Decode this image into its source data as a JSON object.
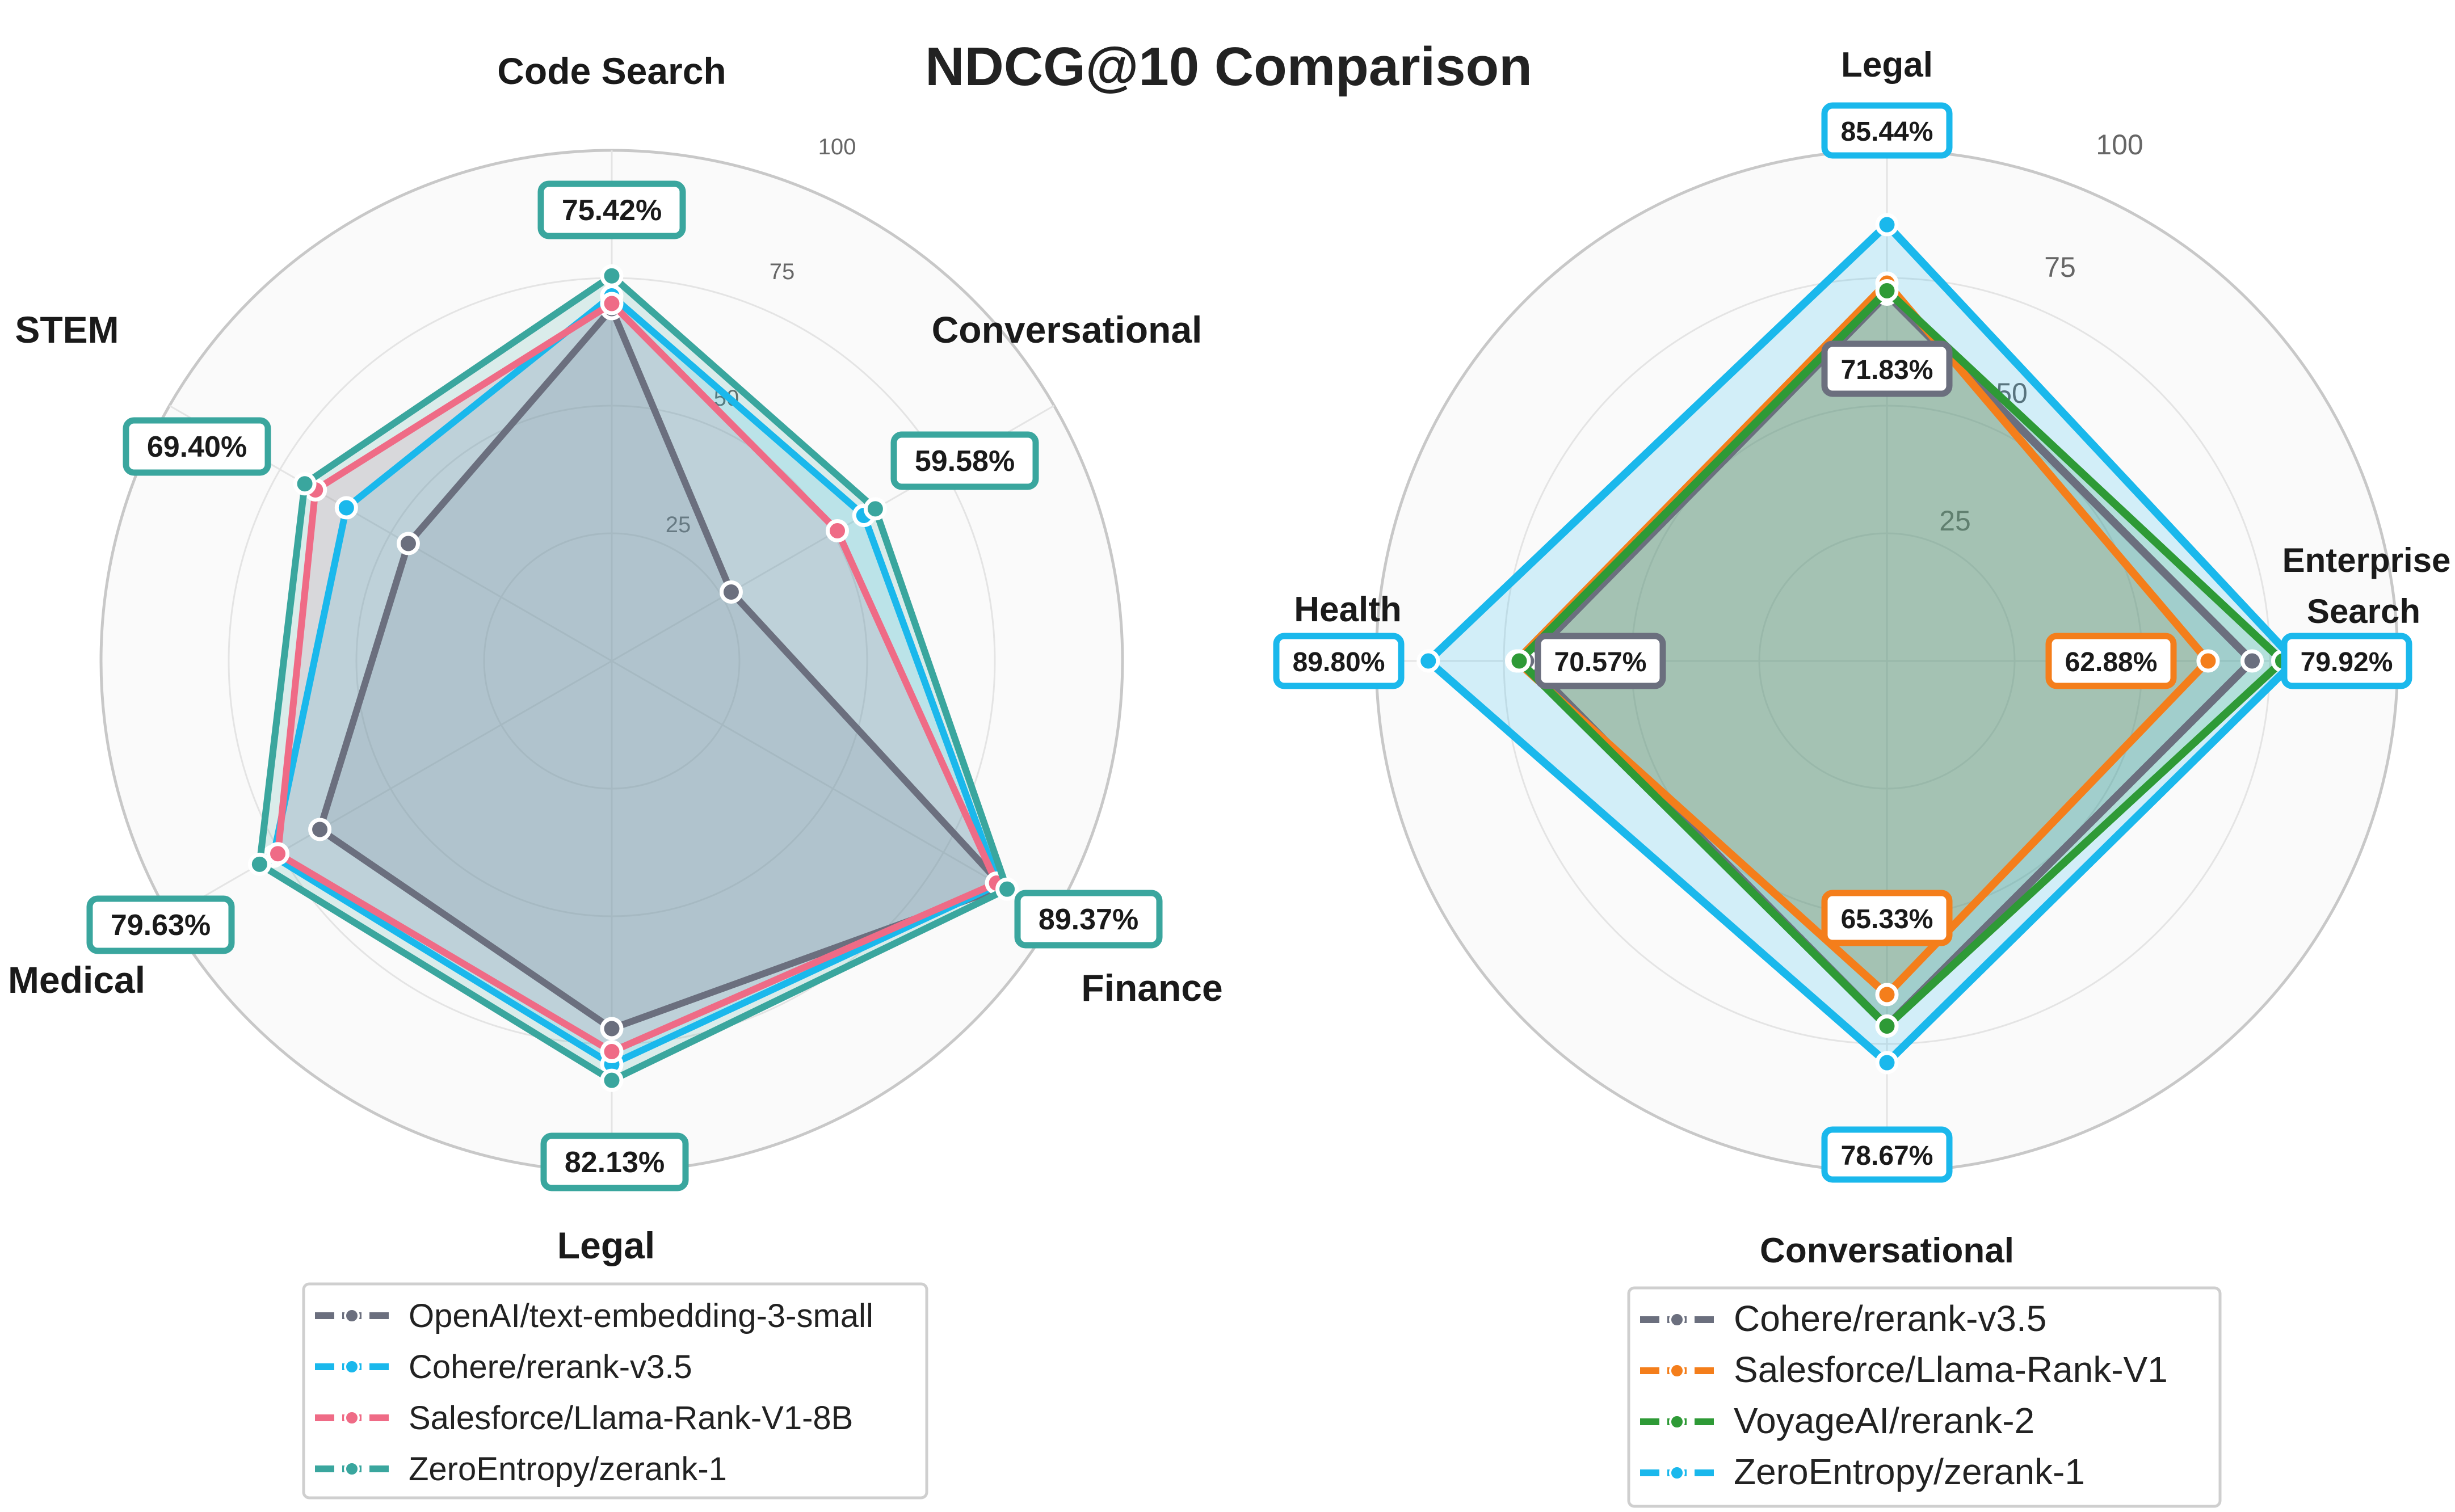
{
  "title": "NDCG@10 Comparison",
  "chart_data": [
    {
      "type": "radar",
      "axes": [
        "Code Search",
        "Conversational",
        "Finance",
        "Legal",
        "Medical",
        "STEM"
      ],
      "rlim": [
        0,
        100
      ],
      "ticks": [
        "25",
        "50",
        "75",
        "100"
      ],
      "series": [
        {
          "name": "OpenAI/text-embedding-3-small",
          "color": "#6b6f7e",
          "values": [
            69,
            27,
            88.5,
            72,
            66,
            46
          ]
        },
        {
          "name": "Cohere/rerank-v3.5",
          "color": "#1ab8ec",
          "values": [
            71.5,
            57,
            87.5,
            79,
            76.5,
            60
          ]
        },
        {
          "name": "Salesforce/Llama-Rank-V1-8B",
          "color": "#ef6b86",
          "values": [
            70,
            51,
            87,
            76.5,
            75.5,
            67
          ]
        },
        {
          "name": "ZeroEntropy/zerank-1",
          "color": "#3aa69e",
          "values": [
            75.42,
            59.58,
            89.37,
            82.13,
            79.63,
            69.4
          ]
        }
      ],
      "annotations": [
        {
          "axis": "Code Search",
          "text": "75.42%",
          "color": "#3aa69e"
        },
        {
          "axis": "Conversational",
          "text": "59.58%",
          "color": "#3aa69e"
        },
        {
          "axis": "Finance",
          "text": "89.37%",
          "color": "#3aa69e"
        },
        {
          "axis": "Legal",
          "text": "82.13%",
          "color": "#3aa69e"
        },
        {
          "axis": "Medical",
          "text": "79.63%",
          "color": "#3aa69e"
        },
        {
          "axis": "STEM",
          "text": "69.40%",
          "color": "#3aa69e"
        }
      ],
      "legend": "bottom"
    },
    {
      "type": "radar",
      "axes": [
        "Legal",
        "Enterprise Search",
        "Conversational",
        "Health"
      ],
      "rlim": [
        0,
        100
      ],
      "ticks": [
        "25",
        "50",
        "75",
        "100"
      ],
      "series": [
        {
          "name": "Cohere/rerank-v3.5",
          "color": "#6b6f7e",
          "values": [
            71.83,
            71.5,
            71.5,
            70.57
          ]
        },
        {
          "name": "Salesforce/Llama-Rank-V1",
          "color": "#f47e1b",
          "values": [
            74,
            62.88,
            65.33,
            72.5
          ]
        },
        {
          "name": "VoyageAI/rerank-2",
          "color": "#2e9a36",
          "values": [
            72.5,
            77.5,
            71.5,
            72
          ]
        },
        {
          "name": "ZeroEntropy/zerank-1",
          "color": "#1ab8ec",
          "values": [
            85.44,
            79.92,
            78.67,
            89.8
          ]
        }
      ],
      "annotations": [
        {
          "axis": "Legal",
          "text": "85.44%",
          "color": "#1ab8ec"
        },
        {
          "axis": "Legal",
          "text": "71.83%",
          "color": "#6b6f7e"
        },
        {
          "axis": "Enterprise Search",
          "text": "79.92%",
          "color": "#1ab8ec"
        },
        {
          "axis": "Enterprise Search",
          "text": "62.88%",
          "color": "#f47e1b"
        },
        {
          "axis": "Conversational",
          "text": "78.67%",
          "color": "#1ab8ec"
        },
        {
          "axis": "Conversational",
          "text": "65.33%",
          "color": "#f47e1b"
        },
        {
          "axis": "Health",
          "text": "89.80%",
          "color": "#1ab8ec"
        },
        {
          "axis": "Health",
          "text": "70.57%",
          "color": "#6b6f7e"
        }
      ],
      "legend": "bottom"
    }
  ]
}
